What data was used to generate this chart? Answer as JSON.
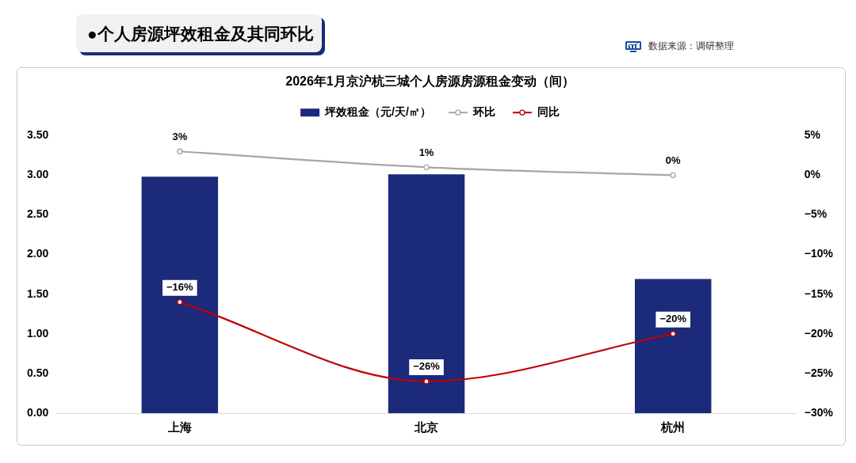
{
  "chart_data": {
    "type": "bar",
    "title": "●个人房源坪效租金及其同环比",
    "subtitle": "2026年1月京沪杭三城个人房源房源租金变动（间）",
    "annotations": [
      "数据来源：调研整理"
    ],
    "categories": [
      "上海",
      "北京",
      "杭州"
    ],
    "series": [
      {
        "name": "坪效租金（元/天/㎡）",
        "color": "#1b2a7a",
        "values": [
          2.98,
          3.01,
          1.69
        ]
      },
      {
        "name": "环比",
        "type": "line",
        "axis": "y2",
        "color": "#a6a6a6",
        "values": [
          3,
          1,
          0
        ],
        "value_labels": [
          "3%",
          "1%",
          "0%"
        ]
      },
      {
        "name": "同比",
        "type": "line",
        "axis": "y2",
        "color": "#c00000",
        "values": [
          -16,
          -26,
          -20
        ],
        "value_labels": [
          "−16%",
          "−26%",
          "−20%"
        ]
      }
    ],
    "ylim": [
      0,
      3.5
    ],
    "yticks": [
      {
        "value": 0,
        "label": "0.00"
      },
      {
        "value": 0.5,
        "label": "0.50"
      },
      {
        "value": 1,
        "label": "1.00"
      },
      {
        "value": 1.5,
        "label": "1.50"
      },
      {
        "value": 2,
        "label": "2.00"
      },
      {
        "value": 2.5,
        "label": "2.50"
      },
      {
        "value": 3,
        "label": "3.00"
      },
      {
        "value": 3.5,
        "label": "3.50"
      }
    ],
    "y2lim": [
      -30,
      5
    ],
    "y2ticks": [
      {
        "value": -30,
        "label": "−30%"
      },
      {
        "value": -25,
        "label": "−25%"
      },
      {
        "value": -20,
        "label": "−20%"
      },
      {
        "value": -15,
        "label": "−15%"
      },
      {
        "value": -10,
        "label": "−10%"
      },
      {
        "value": -5,
        "label": "−5%"
      },
      {
        "value": 0,
        "label": "0%"
      },
      {
        "value": 5,
        "label": "5%"
      }
    ],
    "legend": "top",
    "marker": "circle"
  }
}
